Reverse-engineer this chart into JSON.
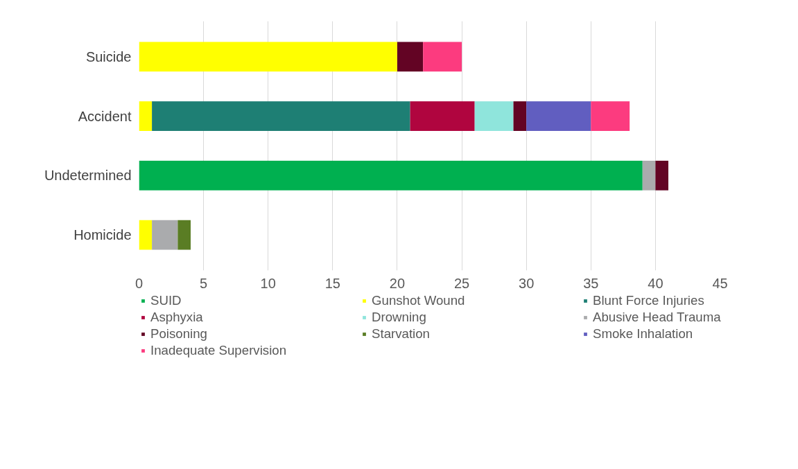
{
  "chart_data": {
    "type": "bar",
    "orientation": "horizontal",
    "stacked": true,
    "categories": [
      "Suicide",
      "Accident",
      "Undetermined",
      "Homicide"
    ],
    "series": [
      {
        "name": "SUID",
        "color": "#00b050",
        "values": [
          null,
          null,
          39,
          null
        ]
      },
      {
        "name": "Gunshot Wound",
        "color": "#ffff00",
        "values": [
          20,
          1,
          null,
          1
        ]
      },
      {
        "name": "Blunt Force Injuries",
        "color": "#1e7f74",
        "values": [
          null,
          20,
          null,
          null
        ]
      },
      {
        "name": "Asphyxia",
        "color": "#b0053f",
        "values": [
          null,
          5,
          null,
          null
        ]
      },
      {
        "name": "Drowning",
        "color": "#8fe5dc",
        "values": [
          null,
          3,
          null,
          null
        ]
      },
      {
        "name": "Abusive Head Trauma",
        "color": "#aaabad",
        "values": [
          null,
          null,
          1,
          2
        ]
      },
      {
        "name": "Poisoning",
        "color": "#630424",
        "values": [
          2,
          1,
          1,
          null
        ]
      },
      {
        "name": "Starvation",
        "color": "#5a7d24",
        "values": [
          null,
          null,
          null,
          1
        ]
      },
      {
        "name": "Smoke Inhalation",
        "color": "#615ec0",
        "values": [
          null,
          5,
          null,
          null
        ]
      },
      {
        "name": "Inadequate Supervision",
        "color": "#fc3b7f",
        "values": [
          3,
          3,
          null,
          null
        ]
      }
    ],
    "xlim": [
      0,
      45
    ],
    "xticks": [
      0,
      5,
      10,
      15,
      20,
      25,
      30,
      35,
      40,
      45
    ],
    "grid": "x",
    "legend": "bottom"
  }
}
